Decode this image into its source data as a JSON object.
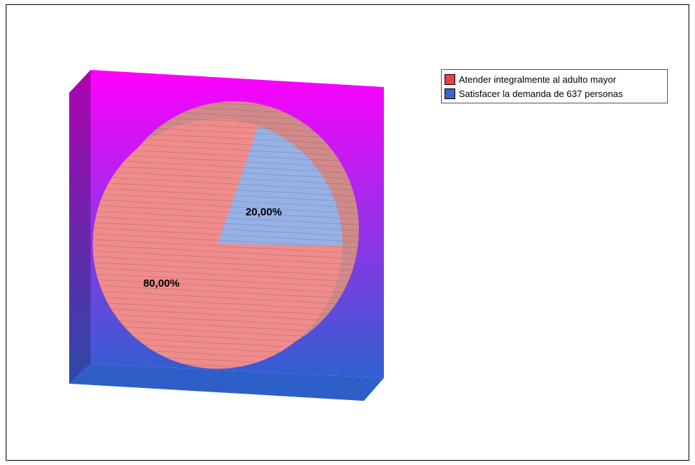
{
  "chart_data": {
    "type": "pie",
    "title": "",
    "categories": [
      "Atender integralmente al adulto mayor",
      "Satisfacer la demanda de 637 personas"
    ],
    "values": [
      80,
      20
    ],
    "value_labels": [
      "80,00%",
      "20,00%"
    ],
    "colors": [
      "#f08c8c",
      "#97b1e6"
    ],
    "legend_colors": [
      "#f04040",
      "#3c64cc"
    ],
    "legend_position": "top-right",
    "background_gradient": [
      "#ff00ff",
      "#3060d0"
    ],
    "style": "3d"
  }
}
